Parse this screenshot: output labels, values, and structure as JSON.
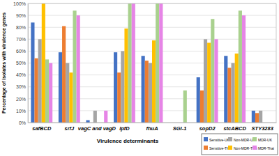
{
  "chart_data": {
    "type": "bar",
    "x_label": "Virulence determinants",
    "y_label": "Percentage of isolates with virulence genes",
    "categories": [
      "safBCD",
      "srfJ",
      "vagC and vagD",
      "lpfD",
      "fhuA",
      "SGI-1",
      "sopD2",
      "stcABCD",
      "STY3283"
    ],
    "series": [
      {
        "name": "Sensitive-UK",
        "color": "#4472c4",
        "values": [
          84,
          59,
          2,
          59,
          56,
          0,
          38,
          56,
          10
        ]
      },
      {
        "name": "Sensitive-Thai",
        "color": "#ed7d31",
        "values": [
          54,
          81,
          0,
          42,
          52,
          0,
          27,
          46,
          8
        ]
      },
      {
        "name": "Non-MDR-UK",
        "color": "#a5a5a5",
        "values": [
          70,
          50,
          10,
          60,
          50,
          0,
          70,
          50,
          10
        ]
      },
      {
        "name": "Non-MDR-Thai",
        "color": "#ffc000",
        "values": [
          100,
          42,
          0,
          79,
          69,
          0,
          67,
          58,
          0
        ]
      },
      {
        "name": "MDR-UK",
        "color": "#a9d18e",
        "values": [
          53,
          94,
          0,
          100,
          100,
          27,
          87,
          94,
          0
        ]
      },
      {
        "name": "MDR-Thai",
        "color": "#e685e6",
        "values": [
          50,
          90,
          10,
          100,
          100,
          0,
          70,
          90,
          0
        ]
      }
    ],
    "ylim": [
      0,
      100
    ],
    "yticks": [
      {
        "value": 0,
        "label": "0%"
      },
      {
        "value": 10,
        "label": "10%"
      },
      {
        "value": 20,
        "label": "20%"
      },
      {
        "value": 30,
        "label": "30%"
      },
      {
        "value": 40,
        "label": "40%"
      },
      {
        "value": 50,
        "label": "50%"
      },
      {
        "value": 60,
        "label": "60%"
      },
      {
        "value": 70,
        "label": "70%"
      },
      {
        "value": 80,
        "label": "80%"
      },
      {
        "value": 90,
        "label": "90%"
      },
      {
        "value": 100,
        "label": "100%"
      }
    ],
    "grid": true,
    "legend": "lower right"
  }
}
